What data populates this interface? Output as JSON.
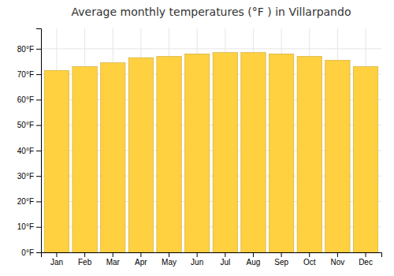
{
  "chart_data": {
    "type": "bar",
    "title": "Average monthly temperatures (°F ) in Villarpando",
    "categories": [
      "Jan",
      "Feb",
      "Mar",
      "Apr",
      "May",
      "Jun",
      "Jul",
      "Aug",
      "Sep",
      "Oct",
      "Nov",
      "Dec"
    ],
    "values": [
      71.5,
      73,
      74.5,
      76.5,
      77,
      78,
      78.5,
      78.5,
      78,
      77,
      75.5,
      73
    ],
    "color": "#FFD040",
    "ylim": [
      0,
      88
    ],
    "yticks": [
      {
        "value": 0,
        "label": "0°F"
      },
      {
        "value": 10,
        "label": "10°F"
      },
      {
        "value": 20,
        "label": "20°F"
      },
      {
        "value": 30,
        "label": "30°F"
      },
      {
        "value": 40,
        "label": "40°F"
      },
      {
        "value": 50,
        "label": "50°F"
      },
      {
        "value": 60,
        "label": "60°F"
      },
      {
        "value": 70,
        "label": "70°F"
      },
      {
        "value": 80,
        "label": "80°F"
      }
    ],
    "grid": true
  }
}
